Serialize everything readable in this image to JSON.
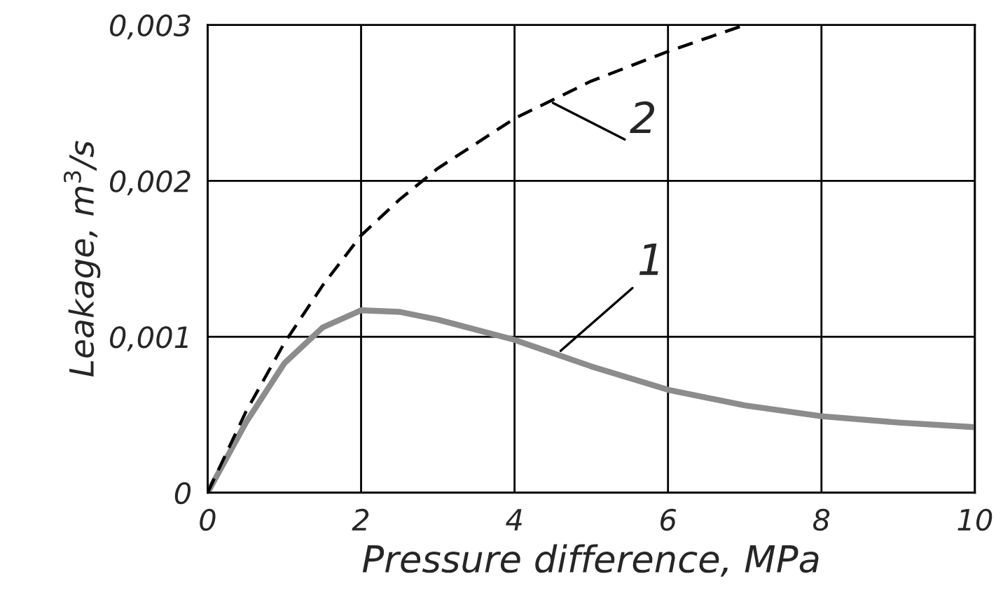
{
  "chart_data": {
    "type": "line",
    "xlabel": "Pressure difference, MPa",
    "ylabel": "Leakage, m$^{3}$/s",
    "x": [
      0,
      0.5,
      1,
      1.5,
      2,
      2.5,
      3,
      4,
      5,
      6,
      7,
      8,
      9,
      10
    ],
    "series": [
      {
        "color": "#8c8c8c",
        "line_style": "solid",
        "values": [
          0,
          0.00045,
          0.00083,
          0.00106,
          0.00117,
          0.00116,
          0.00111,
          0.00098,
          0.00081,
          0.00066,
          0.00056,
          0.00049,
          0.00045,
          0.00042
        ]
      },
      {
        "color": "#000000",
        "line_style": "dashed",
        "x": [
          0,
          0.5,
          1,
          1.5,
          2,
          2.5,
          3,
          4,
          5,
          6,
          7
        ],
        "values": [
          0,
          0.00052,
          0.00096,
          0.00133,
          0.00165,
          0.00188,
          0.00208,
          0.0024,
          0.00264,
          0.00283,
          0.003
        ]
      }
    ],
    "annotations": [
      {
        "text": "1",
        "x": 4.6,
        "y": 0.00091
      },
      {
        "text": "2",
        "x": 4.5,
        "y": 0.0025
      }
    ],
    "xlim": [
      0,
      10
    ],
    "xticks": [
      0,
      2,
      4,
      6,
      8,
      10
    ],
    "ylim": [
      0,
      0.003
    ],
    "yticks": [
      0,
      {
        "value": 0.001,
        "label": "0,001"
      },
      {
        "value": 0.002,
        "label": "0,002"
      },
      {
        "value": 0.003,
        "label": "0,003"
      }
    ],
    "grid": true,
    "legend": false,
    "marker": "none"
  }
}
